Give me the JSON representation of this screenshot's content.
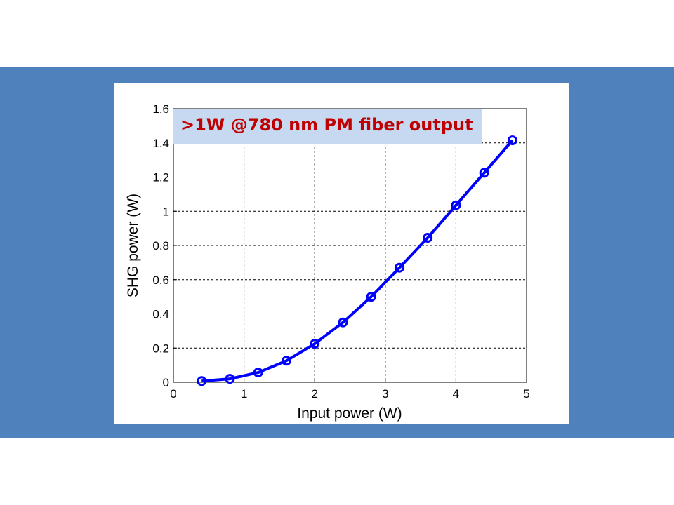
{
  "slide": {
    "background_band_color": "#4f81bd"
  },
  "chart_data": {
    "type": "line",
    "title": "",
    "annotation": ">1W @780 nm PM fiber output",
    "xlabel": "Input power (W)",
    "ylabel": "SHG power (W)",
    "xlim": [
      0,
      5
    ],
    "ylim": [
      0,
      1.6
    ],
    "xticks": [
      "0",
      "1",
      "2",
      "3",
      "4",
      "5"
    ],
    "yticks": [
      "0",
      "0.2",
      "0.4",
      "0.6",
      "0.8",
      "1",
      "1.2",
      "1.4",
      "1.6"
    ],
    "grid": true,
    "marker": "circle",
    "color": "#0000ff",
    "annotation_color": "#c00000",
    "annotation_background": "#c6d9f1",
    "x": [
      0.4,
      0.8,
      1.2,
      1.6,
      2.0,
      2.4,
      2.8,
      3.2,
      3.6,
      4.0,
      4.4,
      4.8
    ],
    "y": [
      0.007,
      0.02,
      0.057,
      0.126,
      0.225,
      0.35,
      0.5,
      0.67,
      0.845,
      1.035,
      1.225,
      1.415
    ]
  }
}
